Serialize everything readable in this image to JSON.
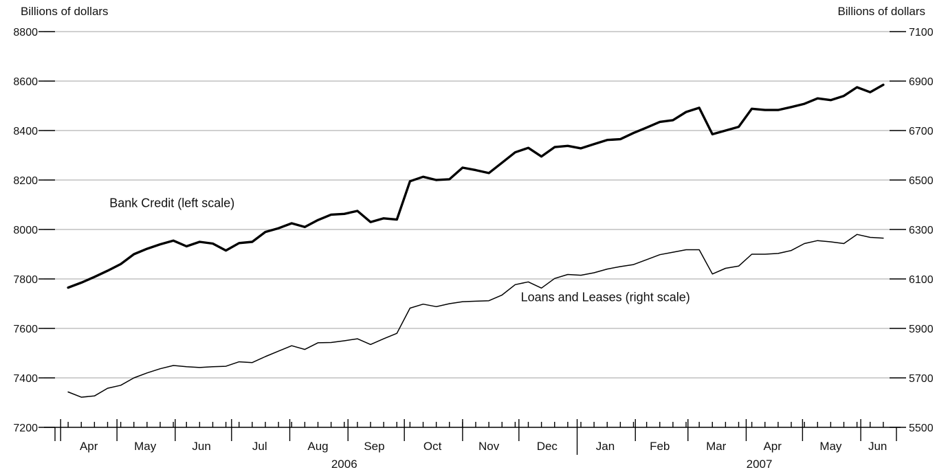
{
  "chart_data": {
    "type": "line",
    "left_axis_title": "Billions of dollars",
    "right_axis_title": "Billions of dollars",
    "left_ylim": [
      7200,
      8800
    ],
    "right_ylim": [
      5500,
      7100
    ],
    "left_ticks": [
      7200,
      7400,
      7600,
      7800,
      8000,
      8200,
      8400,
      8600,
      8800
    ],
    "right_ticks": [
      5500,
      5700,
      5900,
      6100,
      6300,
      6500,
      6700,
      6900,
      7100
    ],
    "grid": true,
    "x_start": "2006-03-29",
    "x_end": "2007-06-20",
    "month_labels": [
      {
        "label": "Apr",
        "date": "2006-04-16"
      },
      {
        "label": "May",
        "date": "2006-05-16"
      },
      {
        "label": "Jun",
        "date": "2006-06-15"
      },
      {
        "label": "Jul",
        "date": "2006-07-16"
      },
      {
        "label": "Aug",
        "date": "2006-08-16"
      },
      {
        "label": "Sep",
        "date": "2006-09-15"
      },
      {
        "label": "Oct",
        "date": "2006-10-16"
      },
      {
        "label": "Nov",
        "date": "2006-11-15"
      },
      {
        "label": "Dec",
        "date": "2006-12-16"
      },
      {
        "label": "Jan",
        "date": "2007-01-16"
      },
      {
        "label": "Feb",
        "date": "2007-02-14"
      },
      {
        "label": "Mar",
        "date": "2007-03-16"
      },
      {
        "label": "Apr",
        "date": "2007-04-15"
      },
      {
        "label": "May",
        "date": "2007-05-16"
      },
      {
        "label": "Jun",
        "date": "2007-06-10"
      }
    ],
    "month_boundaries": [
      "2006-04-01",
      "2006-05-01",
      "2006-06-01",
      "2006-07-01",
      "2006-08-01",
      "2006-09-01",
      "2006-10-01",
      "2006-11-01",
      "2006-12-01",
      "2007-01-01",
      "2007-02-01",
      "2007-03-01",
      "2007-04-01",
      "2007-05-01",
      "2007-06-01"
    ],
    "year_labels": [
      {
        "label": "2006",
        "date": "2006-08-30"
      },
      {
        "label": "2007",
        "date": "2007-04-08"
      }
    ],
    "year_divider": "2007-01-01",
    "week_dates": [
      "2006-04-05",
      "2006-04-12",
      "2006-04-19",
      "2006-04-26",
      "2006-05-03",
      "2006-05-10",
      "2006-05-17",
      "2006-05-24",
      "2006-05-31",
      "2006-06-07",
      "2006-06-14",
      "2006-06-21",
      "2006-06-28",
      "2006-07-05",
      "2006-07-12",
      "2006-07-19",
      "2006-07-26",
      "2006-08-02",
      "2006-08-09",
      "2006-08-16",
      "2006-08-23",
      "2006-08-30",
      "2006-09-06",
      "2006-09-13",
      "2006-09-20",
      "2006-09-27",
      "2006-10-04",
      "2006-10-11",
      "2006-10-18",
      "2006-10-25",
      "2006-11-01",
      "2006-11-08",
      "2006-11-15",
      "2006-11-22",
      "2006-11-29",
      "2006-12-06",
      "2006-12-13",
      "2006-12-20",
      "2006-12-27",
      "2007-01-03",
      "2007-01-10",
      "2007-01-17",
      "2007-01-24",
      "2007-01-31",
      "2007-02-07",
      "2007-02-14",
      "2007-02-21",
      "2007-02-28",
      "2007-03-07",
      "2007-03-14",
      "2007-03-21",
      "2007-03-28",
      "2007-04-04",
      "2007-04-11",
      "2007-04-18",
      "2007-04-25",
      "2007-05-02",
      "2007-05-09",
      "2007-05-16",
      "2007-05-23",
      "2007-05-30",
      "2007-06-06",
      "2007-06-13"
    ],
    "series": [
      {
        "name": "Bank Credit (left scale)",
        "axis": "left",
        "line_width": 3.4,
        "color": "#000000",
        "x": [
          "2006-04-05",
          "2006-04-12",
          "2006-04-19",
          "2006-04-26",
          "2006-05-03",
          "2006-05-10",
          "2006-05-17",
          "2006-05-24",
          "2006-05-31",
          "2006-06-07",
          "2006-06-14",
          "2006-06-21",
          "2006-06-28",
          "2006-07-05",
          "2006-07-12",
          "2006-07-19",
          "2006-07-26",
          "2006-08-02",
          "2006-08-09",
          "2006-08-16",
          "2006-08-23",
          "2006-08-30",
          "2006-09-06",
          "2006-09-13",
          "2006-09-20",
          "2006-09-27",
          "2006-10-04",
          "2006-10-11",
          "2006-10-18",
          "2006-10-25",
          "2006-11-01",
          "2006-11-08",
          "2006-11-15",
          "2006-11-22",
          "2006-11-29",
          "2006-12-06",
          "2006-12-13",
          "2006-12-20",
          "2006-12-27",
          "2007-01-03",
          "2007-01-10",
          "2007-01-17",
          "2007-01-24",
          "2007-01-31",
          "2007-02-07",
          "2007-02-14",
          "2007-02-21",
          "2007-02-28",
          "2007-03-07",
          "2007-03-14",
          "2007-03-21",
          "2007-03-28",
          "2007-04-04",
          "2007-04-11",
          "2007-04-18",
          "2007-04-25",
          "2007-05-02",
          "2007-05-09",
          "2007-05-16",
          "2007-05-23",
          "2007-05-30",
          "2007-06-06",
          "2007-06-13"
        ],
        "values": [
          7765,
          7785,
          7808,
          7833,
          7860,
          7900,
          7922,
          7940,
          7955,
          7932,
          7950,
          7943,
          7915,
          7945,
          7950,
          7990,
          8005,
          8025,
          8010,
          8038,
          8060,
          8063,
          8075,
          8030,
          8045,
          8040,
          8195,
          8213,
          8200,
          8203,
          8250,
          8240,
          8228,
          8270,
          8312,
          8330,
          8295,
          8333,
          8338,
          8328,
          8345,
          8362,
          8365,
          8390,
          8412,
          8435,
          8442,
          8475,
          8492,
          8385,
          8400,
          8415,
          8488,
          8483,
          8483,
          8495,
          8508,
          8530,
          8523,
          8540,
          8575,
          8555,
          8585
        ]
      },
      {
        "name": "Loans and Leases (right scale)",
        "axis": "right",
        "line_width": 1.5,
        "color": "#000000",
        "x": [
          "2006-04-05",
          "2006-04-12",
          "2006-04-19",
          "2006-04-26",
          "2006-05-03",
          "2006-05-10",
          "2006-05-17",
          "2006-05-24",
          "2006-05-31",
          "2006-06-07",
          "2006-06-14",
          "2006-06-21",
          "2006-06-28",
          "2006-07-05",
          "2006-07-12",
          "2006-07-19",
          "2006-07-26",
          "2006-08-02",
          "2006-08-09",
          "2006-08-16",
          "2006-08-23",
          "2006-08-30",
          "2006-09-06",
          "2006-09-13",
          "2006-09-20",
          "2006-09-27",
          "2006-10-04",
          "2006-10-11",
          "2006-10-18",
          "2006-10-25",
          "2006-11-01",
          "2006-11-08",
          "2006-11-15",
          "2006-11-22",
          "2006-11-29",
          "2006-12-06",
          "2006-12-13",
          "2006-12-20",
          "2006-12-27",
          "2007-01-03",
          "2007-01-10",
          "2007-01-17",
          "2007-01-24",
          "2007-01-31",
          "2007-02-07",
          "2007-02-14",
          "2007-02-21",
          "2007-02-28",
          "2007-03-07",
          "2007-03-14",
          "2007-03-21",
          "2007-03-28",
          "2007-04-04",
          "2007-04-11",
          "2007-04-18",
          "2007-04-25",
          "2007-05-02",
          "2007-05-09",
          "2007-05-16",
          "2007-05-23",
          "2007-05-30",
          "2007-06-06",
          "2007-06-13"
        ],
        "values": [
          5643,
          5622,
          5627,
          5658,
          5670,
          5700,
          5720,
          5737,
          5750,
          5745,
          5742,
          5745,
          5747,
          5765,
          5762,
          5786,
          5808,
          5830,
          5815,
          5842,
          5843,
          5850,
          5858,
          5835,
          5858,
          5880,
          5982,
          5998,
          5988,
          6000,
          6008,
          6010,
          6012,
          6035,
          6077,
          6088,
          6063,
          6102,
          6118,
          6115,
          6125,
          6140,
          6150,
          6158,
          6178,
          6198,
          6208,
          6218,
          6218,
          6120,
          6143,
          6152,
          6200,
          6200,
          6203,
          6215,
          6243,
          6255,
          6250,
          6243,
          6280,
          6268,
          6265
        ]
      }
    ],
    "annotations": [
      {
        "text": "Bank Credit (left scale)",
        "date": "2006-04-27",
        "left_value": 8090
      },
      {
        "text": "Loans and Leases (right scale)",
        "date": "2006-12-02",
        "right_value": 6010
      }
    ]
  }
}
